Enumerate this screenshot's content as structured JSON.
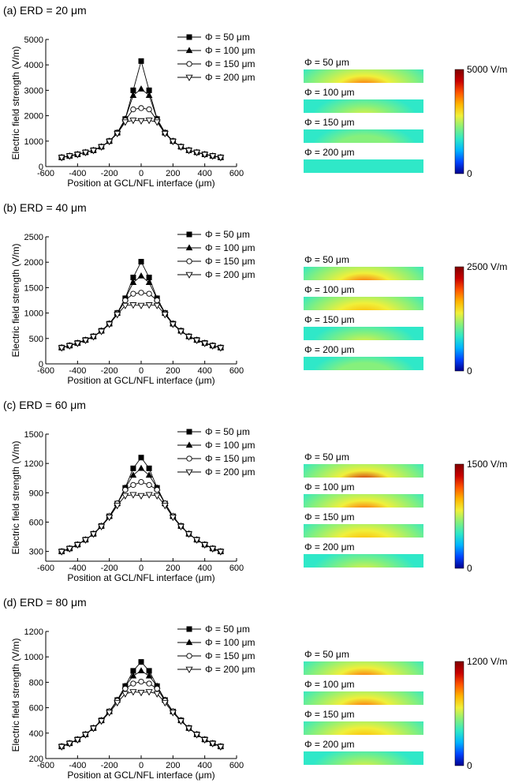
{
  "colormap": [
    "#00008f",
    "#0044ff",
    "#00b4ff",
    "#2fe8c8",
    "#86f07c",
    "#f0f03a",
    "#ffb400",
    "#ff5500",
    "#c80000",
    "#800000"
  ],
  "chart_data": [
    {
      "type": "line",
      "panel_label": "(a) ERD = 20 μm",
      "xlabel": "Position at GCL/NFL interface (μm)",
      "ylabel": "Electric field strength (V/m)",
      "xlim": [
        -600,
        600
      ],
      "ylim": [
        0,
        5000
      ],
      "xticks": [
        -600,
        -400,
        -200,
        0,
        200,
        400,
        600
      ],
      "yticks": [
        0,
        1000,
        2000,
        3000,
        4000,
        5000
      ],
      "legend_position": "top-right",
      "x": [
        -500,
        -450,
        -400,
        -350,
        -300,
        -250,
        -200,
        -150,
        -100,
        -50,
        0,
        50,
        100,
        150,
        200,
        250,
        300,
        350,
        400,
        450,
        500
      ],
      "series": [
        {
          "name": "Φ = 50 μm",
          "marker": "filled-square",
          "values": [
            360,
            420,
            480,
            560,
            640,
            780,
            1000,
            1330,
            1870,
            3000,
            4150,
            3000,
            1870,
            1330,
            1000,
            780,
            640,
            560,
            480,
            420,
            360
          ]
        },
        {
          "name": "Φ = 100 μm",
          "marker": "filled-triangle-up",
          "values": [
            360,
            420,
            480,
            560,
            640,
            780,
            1000,
            1330,
            1870,
            2800,
            3050,
            2800,
            1870,
            1330,
            1000,
            780,
            640,
            560,
            480,
            420,
            360
          ]
        },
        {
          "name": "Φ = 150 μm",
          "marker": "open-circle",
          "values": [
            360,
            420,
            480,
            560,
            640,
            780,
            1000,
            1320,
            1820,
            2250,
            2300,
            2250,
            1820,
            1320,
            1000,
            780,
            640,
            560,
            480,
            420,
            360
          ]
        },
        {
          "name": "Φ = 200 μm",
          "marker": "open-triangle-down",
          "values": [
            355,
            415,
            475,
            555,
            635,
            775,
            990,
            1300,
            1750,
            1820,
            1800,
            1820,
            1750,
            1300,
            990,
            775,
            635,
            555,
            475,
            415,
            355
          ]
        }
      ],
      "field_maps": {
        "labels": [
          "Φ = 50 μm",
          "Φ = 100 μm",
          "Φ = 150 μm",
          "Φ = 200 μm"
        ],
        "peak_fraction": [
          0.83,
          0.61,
          0.46,
          0.36
        ],
        "colorbar_max": "5000 V/m",
        "colorbar_min": "0"
      }
    },
    {
      "type": "line",
      "panel_label": "(b) ERD = 40 μm",
      "xlabel": "Position at GCL/NFL interface (μm)",
      "ylabel": "Electric field strength (V/m)",
      "xlim": [
        -600,
        600
      ],
      "ylim": [
        0,
        2500
      ],
      "xticks": [
        -600,
        -400,
        -200,
        0,
        200,
        400,
        600
      ],
      "yticks": [
        0,
        500,
        1000,
        1500,
        2000,
        2500
      ],
      "legend_position": "top-right",
      "x": [
        -500,
        -450,
        -400,
        -350,
        -300,
        -250,
        -200,
        -150,
        -100,
        -50,
        0,
        50,
        100,
        150,
        200,
        250,
        300,
        350,
        400,
        450,
        500
      ],
      "series": [
        {
          "name": "Φ = 50 μm",
          "marker": "filled-square",
          "values": [
            320,
            360,
            410,
            470,
            540,
            650,
            790,
            1000,
            1290,
            1700,
            2010,
            1700,
            1290,
            1000,
            790,
            650,
            540,
            470,
            410,
            360,
            320
          ]
        },
        {
          "name": "Φ = 100 μm",
          "marker": "filled-triangle-up",
          "values": [
            320,
            360,
            410,
            470,
            540,
            650,
            790,
            1000,
            1280,
            1600,
            1730,
            1600,
            1280,
            1000,
            790,
            650,
            540,
            470,
            410,
            360,
            320
          ]
        },
        {
          "name": "Φ = 150 μm",
          "marker": "open-circle",
          "values": [
            320,
            360,
            410,
            470,
            540,
            650,
            790,
            990,
            1250,
            1380,
            1400,
            1380,
            1250,
            990,
            790,
            650,
            540,
            470,
            410,
            360,
            320
          ]
        },
        {
          "name": "Φ = 200 μm",
          "marker": "open-triangle-down",
          "values": [
            315,
            355,
            405,
            465,
            535,
            640,
            780,
            970,
            1150,
            1160,
            1150,
            1160,
            1150,
            970,
            780,
            640,
            535,
            465,
            405,
            355,
            315
          ]
        }
      ],
      "field_maps": {
        "labels": [
          "Φ = 50 μm",
          "Φ = 100 μm",
          "Φ = 150 μm",
          "Φ = 200 μm"
        ],
        "peak_fraction": [
          0.8,
          0.69,
          0.56,
          0.46
        ],
        "colorbar_max": "2500 V/m",
        "colorbar_min": "0"
      }
    },
    {
      "type": "line",
      "panel_label": "(c) ERD = 60 μm",
      "xlabel": "Position at GCL/NFL interface (μm)",
      "ylabel": "Electric field strength (V/m)",
      "xlim": [
        -600,
        600
      ],
      "ylim": [
        200,
        1500
      ],
      "xticks": [
        -600,
        -400,
        -200,
        0,
        200,
        400,
        600
      ],
      "yticks": [
        300,
        600,
        900,
        1200,
        1500
      ],
      "legend_position": "top-right",
      "x": [
        -500,
        -450,
        -400,
        -350,
        -300,
        -250,
        -200,
        -150,
        -100,
        -50,
        0,
        50,
        100,
        150,
        200,
        250,
        300,
        350,
        400,
        450,
        500
      ],
      "series": [
        {
          "name": "Φ = 50 μm",
          "marker": "filled-square",
          "values": [
            300,
            330,
            370,
            420,
            480,
            560,
            660,
            790,
            950,
            1150,
            1260,
            1150,
            950,
            790,
            660,
            560,
            480,
            420,
            370,
            330,
            300
          ]
        },
        {
          "name": "Φ = 100 μm",
          "marker": "filled-triangle-up",
          "values": [
            300,
            330,
            370,
            420,
            480,
            560,
            660,
            790,
            950,
            1080,
            1150,
            1080,
            950,
            790,
            660,
            560,
            480,
            420,
            370,
            330,
            300
          ]
        },
        {
          "name": "Φ = 150 μm",
          "marker": "open-circle",
          "values": [
            300,
            330,
            370,
            420,
            480,
            560,
            660,
            790,
            930,
            980,
            1010,
            980,
            930,
            790,
            660,
            560,
            480,
            420,
            370,
            330,
            300
          ]
        },
        {
          "name": "Φ = 200 μm",
          "marker": "open-triangle-down",
          "values": [
            298,
            328,
            368,
            418,
            478,
            555,
            650,
            770,
            870,
            880,
            870,
            880,
            870,
            770,
            650,
            555,
            478,
            418,
            368,
            328,
            298
          ]
        }
      ],
      "field_maps": {
        "labels": [
          "Φ = 50 μm",
          "Φ = 100 μm",
          "Φ = 150 μm",
          "Φ = 200 μm"
        ],
        "peak_fraction": [
          0.84,
          0.77,
          0.67,
          0.59
        ],
        "colorbar_max": "1500 V/m",
        "colorbar_min": "0"
      }
    },
    {
      "type": "line",
      "panel_label": "(d) ERD = 80 μm",
      "xlabel": "Position at GCL/NFL interface (μm)",
      "ylabel": "Electric field strength (V/m)",
      "xlim": [
        -600,
        600
      ],
      "ylim": [
        200,
        1200
      ],
      "xticks": [
        -600,
        -400,
        -200,
        0,
        200,
        400,
        600
      ],
      "yticks": [
        200,
        400,
        600,
        800,
        1000,
        1200
      ],
      "legend_position": "top-right",
      "x": [
        -500,
        -450,
        -400,
        -350,
        -300,
        -250,
        -200,
        -150,
        -100,
        -50,
        0,
        50,
        100,
        150,
        200,
        250,
        300,
        350,
        400,
        450,
        500
      ],
      "series": [
        {
          "name": "Φ = 50 μm",
          "marker": "filled-square",
          "values": [
            295,
            320,
            350,
            390,
            440,
            500,
            570,
            660,
            770,
            890,
            960,
            890,
            770,
            660,
            570,
            500,
            440,
            390,
            350,
            320,
            295
          ]
        },
        {
          "name": "Φ = 100 μm",
          "marker": "filled-triangle-up",
          "values": [
            295,
            320,
            350,
            390,
            440,
            500,
            570,
            660,
            770,
            850,
            890,
            850,
            770,
            660,
            570,
            500,
            440,
            390,
            350,
            320,
            295
          ]
        },
        {
          "name": "Φ = 150 μm",
          "marker": "open-circle",
          "values": [
            295,
            320,
            350,
            390,
            440,
            500,
            570,
            655,
            750,
            790,
            805,
            790,
            750,
            655,
            570,
            500,
            440,
            390,
            350,
            320,
            295
          ]
        },
        {
          "name": "Φ = 200 μm",
          "marker": "open-triangle-down",
          "values": [
            293,
            318,
            348,
            388,
            438,
            495,
            562,
            640,
            710,
            725,
            720,
            725,
            710,
            640,
            562,
            495,
            438,
            388,
            348,
            318,
            293
          ]
        }
      ],
      "field_maps": {
        "labels": [
          "Φ = 50 μm",
          "Φ = 100 μm",
          "Φ = 150 μm",
          "Φ = 200 μm"
        ],
        "peak_fraction": [
          0.8,
          0.74,
          0.67,
          0.6
        ],
        "colorbar_max": "1200 V/m",
        "colorbar_min": "0"
      }
    }
  ]
}
